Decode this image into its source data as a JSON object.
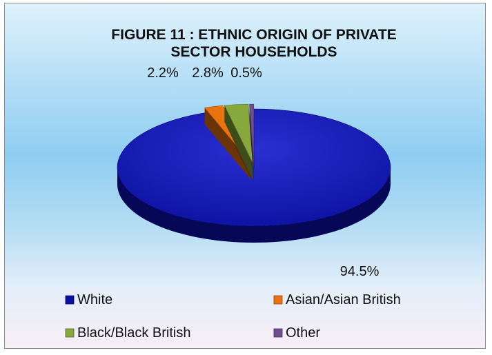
{
  "chart_data": {
    "type": "pie",
    "title_lines": [
      "FIGURE 11 : ETHNIC ORIGIN OF PRIVATE",
      "SECTOR HOUSEHOLDS"
    ],
    "categories": [
      "White",
      "Asian/Asian British",
      "Black/Black British",
      "Other"
    ],
    "values": [
      94.5,
      2.2,
      2.8,
      0.5
    ],
    "data_labels": [
      "94.5%",
      "2.2%",
      "2.8%",
      "0.5%"
    ],
    "colors": [
      "#0a0f9e",
      "#e9740f",
      "#86a83c",
      "#6f4f8e"
    ],
    "legend_position": "bottom",
    "style": "3d-exploded"
  }
}
